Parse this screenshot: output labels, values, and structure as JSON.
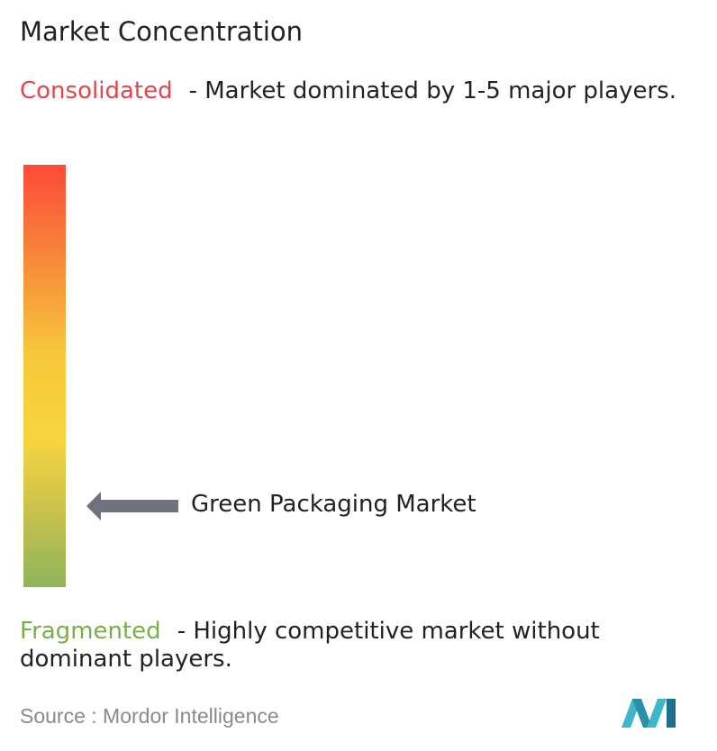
{
  "title": "Market Concentration",
  "consolidated": {
    "label": "Consolidated",
    "description": "- Market dominated by 1-5 major players."
  },
  "fragmented": {
    "label": "Fragmented",
    "description": "- Highly competitive market without dominant players."
  },
  "marker": {
    "label": "Green Packaging Market"
  },
  "source": {
    "prefix": "Source :",
    "name": "Mordor Intelligence"
  }
}
